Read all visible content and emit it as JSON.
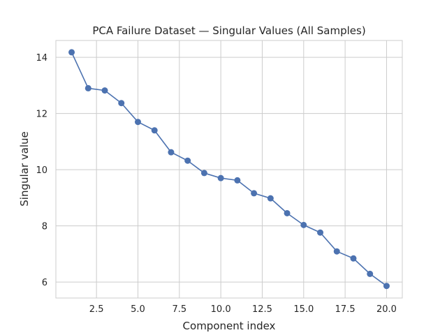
{
  "chart_data": {
    "type": "line",
    "title": "PCA Failure Dataset — Singular Values (All Samples)",
    "xlabel": "Component index",
    "ylabel": "Singular value",
    "xlim": [
      0.05,
      20.95
    ],
    "ylim": [
      5.43,
      14.6
    ],
    "xticks": [
      2.5,
      5.0,
      7.5,
      10.0,
      12.5,
      15.0,
      17.5,
      20.0
    ],
    "xtick_labels": [
      "2.5",
      "5.0",
      "7.5",
      "10.0",
      "12.5",
      "15.0",
      "17.5",
      "20.0"
    ],
    "yticks": [
      6,
      8,
      10,
      12,
      14
    ],
    "ytick_labels": [
      "6",
      "8",
      "10",
      "12",
      "14"
    ],
    "grid": true,
    "legend": "none",
    "series": [
      {
        "color": "#4c72b0",
        "marker": "circle",
        "x": [
          1,
          2,
          3,
          4,
          5,
          6,
          7,
          8,
          9,
          10,
          11,
          12,
          13,
          14,
          15,
          16,
          17,
          18,
          19,
          20
        ],
        "y": [
          14.18,
          12.9,
          12.82,
          12.37,
          11.7,
          11.4,
          10.62,
          10.32,
          9.88,
          9.7,
          9.62,
          9.16,
          8.98,
          8.45,
          8.03,
          7.76,
          7.09,
          6.84,
          6.29,
          5.86
        ]
      }
    ]
  }
}
